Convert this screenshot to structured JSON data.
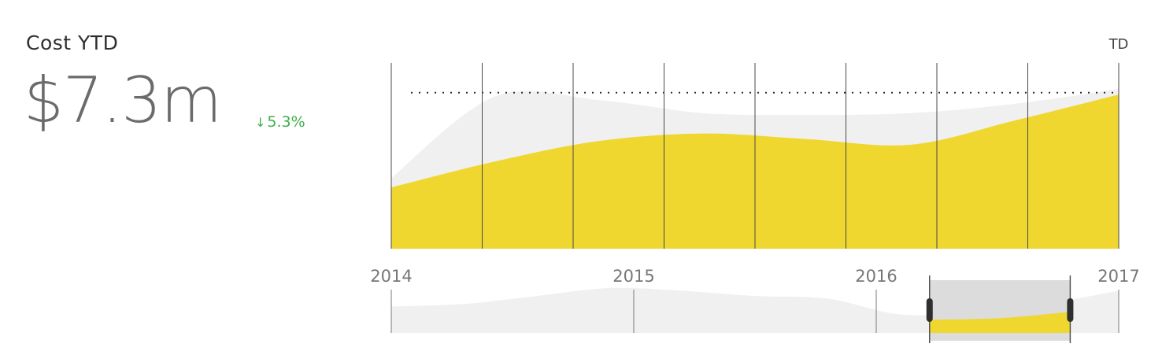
{
  "kpi": {
    "title": "Cost YTD",
    "value": "$7.3m",
    "delta": "5.3%",
    "delta_direction": "down",
    "delta_color": "#3fae49"
  },
  "chart_data": {
    "type": "area",
    "main": {
      "corner_label": "TD",
      "columns": 8,
      "ylim": [
        0,
        1
      ],
      "reference_level": 0.84,
      "series": [
        {
          "color": "#efd72f",
          "values": [
            0.33,
            0.47,
            0.58,
            0.62,
            0.59,
            0.56,
            0.69,
            0.83
          ]
        },
        {
          "color": "#f0f0f0",
          "values": [
            0.38,
            0.82,
            0.8,
            0.73,
            0.72,
            0.73,
            0.78,
            0.86
          ]
        }
      ]
    },
    "navigator": {
      "ticks": [
        "2014",
        "2015",
        "2016",
        "2017"
      ],
      "xlim": [
        2014,
        2017
      ],
      "background_values": [
        0.5,
        0.55,
        0.7,
        0.85,
        0.8,
        0.7,
        0.65,
        0.35,
        0.4,
        0.55,
        0.8
      ],
      "selection": [
        2016.22,
        2016.8
      ],
      "selection_values": [
        0.25,
        0.28,
        0.4
      ]
    }
  }
}
